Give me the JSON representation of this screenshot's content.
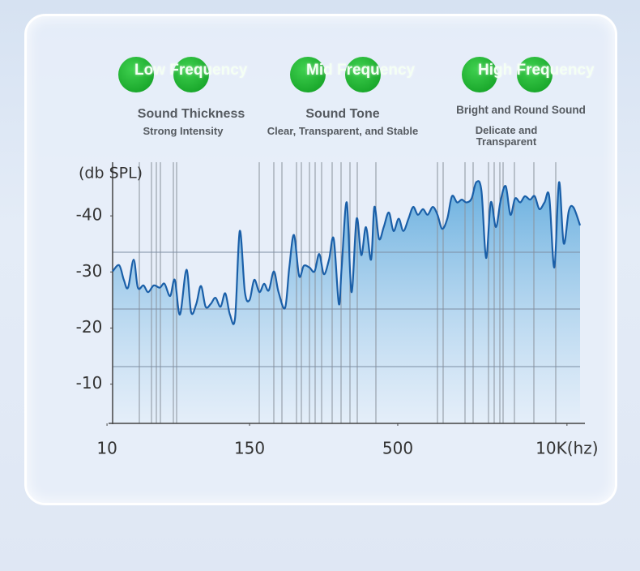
{
  "bands": [
    {
      "label": "Low Frequency",
      "title": "Sound Thickness",
      "subtitle": "Strong Intensity"
    },
    {
      "label": "Mid Frequency",
      "title": "Sound Tone",
      "subtitle": "Clear, Transparent, and Stable"
    },
    {
      "label": "High Frequency",
      "title": "Bright and Round Sound",
      "subtitle": "Delicate and Transparent"
    }
  ],
  "chart_data": {
    "type": "area",
    "y_label": "(db SPL)",
    "color": "#1a5fa8",
    "x": [
      0,
      1.4,
      2.4,
      3.3,
      4.5,
      5.4,
      6.6,
      7.6,
      8.8,
      10.1,
      11.1,
      12.3,
      13.3,
      14.4,
      15.8,
      16.8,
      17.9,
      18.9,
      19.9,
      21.0,
      22.0,
      23.1,
      24.1,
      25.1,
      26.2,
      27.2,
      28.3,
      29.3,
      30.3,
      31.4,
      32.4,
      33.4,
      34.5,
      35.5,
      36.9,
      37.8,
      38.8,
      39.9,
      40.9,
      42.1,
      43.2,
      44.2,
      45.2,
      46.3,
      47.3,
      48.4,
      49.0,
      50.1,
      51.1,
      52.2,
      53.2,
      54.2,
      55.3,
      56.0,
      57.0,
      58.0,
      59.1,
      60.1,
      61.2,
      62.2,
      63.3,
      64.3,
      65.3,
      66.4,
      67.4,
      68.5,
      69.5,
      70.5,
      71.6,
      72.6,
      73.7,
      74.7,
      75.7,
      76.8,
      77.8,
      78.9,
      79.9,
      80.9,
      82.0,
      83.0,
      84.1,
      85.1,
      86.1,
      87.2,
      88.2,
      89.3,
      90.3,
      91.3,
      92.4,
      93.4,
      94.5,
      95.5,
      96.5,
      97.6,
      98.6,
      100
    ],
    "values": [
      -30.1,
      -31.2,
      -28.6,
      -27.2,
      -32.2,
      -27.2,
      -27.6,
      -26.4,
      -27.6,
      -27.2,
      -27.9,
      -25.7,
      -28.6,
      -22.4,
      -30.4,
      -22.8,
      -24.3,
      -27.5,
      -23.8,
      -24.3,
      -25.4,
      -23.8,
      -26.2,
      -22.4,
      -21.8,
      -37.3,
      -26.4,
      -25.0,
      -28.6,
      -26.4,
      -27.9,
      -26.7,
      -30.1,
      -26.4,
      -23.6,
      -30.8,
      -36.6,
      -29.3,
      -31.1,
      -30.8,
      -30.1,
      -33.2,
      -29.6,
      -32.2,
      -35.9,
      -24.3,
      -30.8,
      -42.4,
      -26.4,
      -39.5,
      -33.0,
      -38.0,
      -32.2,
      -41.6,
      -35.9,
      -38.0,
      -40.6,
      -37.3,
      -39.5,
      -37.3,
      -39.5,
      -41.6,
      -40.2,
      -41.2,
      -40.2,
      -41.6,
      -40.2,
      -37.7,
      -39.5,
      -43.5,
      -42.4,
      -42.9,
      -42.4,
      -43.1,
      -46.0,
      -44.5,
      -32.5,
      -42.4,
      -38.0,
      -42.7,
      -45.3,
      -40.2,
      -43.1,
      -42.4,
      -43.5,
      -42.9,
      -43.5,
      -41.2,
      -42.4,
      -43.5,
      -30.8,
      -46.0,
      -35.1,
      -40.9,
      -41.5,
      -38.3
    ],
    "xlim": [
      0,
      100
    ],
    "xticks": [
      {
        "value": -1.2,
        "label": "10"
      },
      {
        "value": 29.3,
        "label": "150"
      },
      {
        "value": 61.0,
        "label": "500"
      },
      {
        "value": 97.2,
        "label": "10K(hz)"
      }
    ],
    "ylim": [
      -3,
      -50
    ],
    "yticks": [
      -40,
      -30,
      -20,
      -10
    ]
  }
}
